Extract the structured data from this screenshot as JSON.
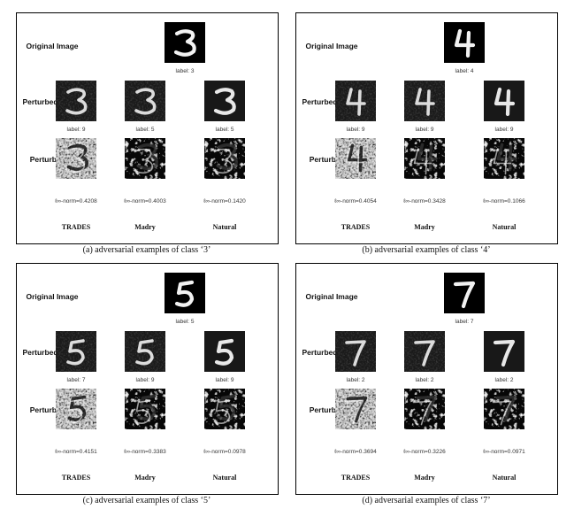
{
  "figure": {
    "row_labels": {
      "original": "Original Image",
      "perturbed": "Perturbed Image",
      "perturbation": "Perturbation"
    },
    "columns": [
      "TRADES",
      "Madry",
      "Natural"
    ],
    "panels": [
      {
        "digit": "3",
        "caption": "(a)  adversarial examples of class ‘3’",
        "original_label": "label: 3",
        "perturbed_labels": [
          "label: 9",
          "label: 5",
          "label: 5"
        ],
        "norms": [
          "ℓ∞-norm=0.4208",
          "ℓ∞-norm=0.4003",
          "ℓ∞-norm=0.1420"
        ]
      },
      {
        "digit": "4",
        "caption": "(b)  adversarial examples of class ‘4’",
        "original_label": "label: 4",
        "perturbed_labels": [
          "label: 9",
          "label: 9",
          "label: 9"
        ],
        "norms": [
          "ℓ∞-norm=0.4054",
          "ℓ∞-norm=0.3428",
          "ℓ∞-norm=0.1066"
        ]
      },
      {
        "digit": "5",
        "caption": "(c)  adversarial examples of class ‘5’",
        "original_label": "label: 5",
        "perturbed_labels": [
          "label: 7",
          "label: 9",
          "label: 9"
        ],
        "norms": [
          "ℓ∞-norm=0.4151",
          "ℓ∞-norm=0.3383",
          "ℓ∞-norm=0.0978"
        ]
      },
      {
        "digit": "7",
        "caption": "(d)  adversarial examples of class ‘7’",
        "original_label": "label: 7",
        "perturbed_labels": [
          "label: 2",
          "label: 2",
          "label: 2"
        ],
        "norms": [
          "ℓ∞-norm=0.3694",
          "ℓ∞-norm=0.3226",
          "ℓ∞-norm=0.0971"
        ]
      }
    ]
  }
}
